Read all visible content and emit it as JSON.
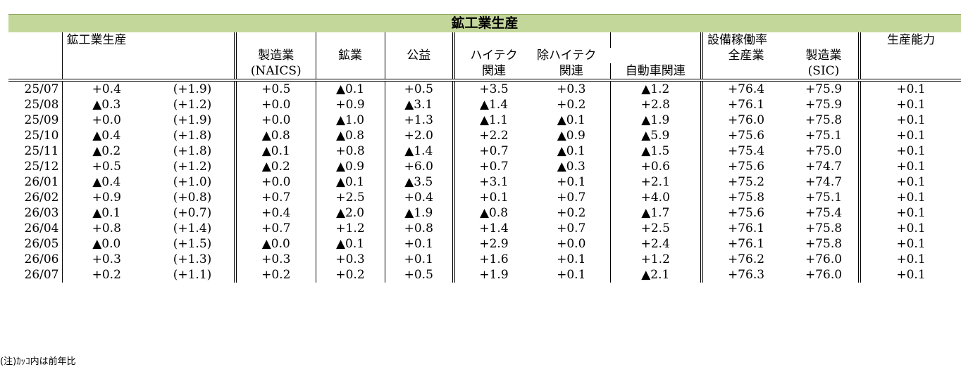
{
  "title": "鉱工業生産",
  "headers": {
    "group_production": "鉱工業生産",
    "group_utilization": "設備稼働率",
    "capacity": "生産能力",
    "manufacturing": "製造業",
    "naics": "(NAICS)",
    "mining": "鉱業",
    "utilities": "公益",
    "hitech": "ハイテク",
    "hitech_related": "関連",
    "ex_hitech": "除ハイテク",
    "ex_hitech_related": "関連",
    "auto": "自動車関連",
    "all_industry": "全産業",
    "util_manufacturing": "製造業",
    "sic": "(SIC)"
  },
  "rows": [
    {
      "period": "25/07",
      "total": "+0.4",
      "yoy": "(+1.9)",
      "mfg": "+0.5",
      "mining": "▲0.1",
      "utilities": "+0.5",
      "hitech": "+3.5",
      "ex_hitech": "+0.3",
      "auto": "▲1.2",
      "util_all": "+76.4",
      "util_mfg": "+75.9",
      "capacity": "+0.1"
    },
    {
      "period": "25/08",
      "total": "▲0.3",
      "yoy": "(+1.2)",
      "mfg": "+0.0",
      "mining": "+0.9",
      "utilities": "▲3.1",
      "hitech": "▲1.4",
      "ex_hitech": "+0.2",
      "auto": "+2.8",
      "util_all": "+76.1",
      "util_mfg": "+75.9",
      "capacity": "+0.1"
    },
    {
      "period": "25/09",
      "total": "+0.0",
      "yoy": "(+1.9)",
      "mfg": "+0.0",
      "mining": "▲1.0",
      "utilities": "+1.3",
      "hitech": "▲1.1",
      "ex_hitech": "▲0.1",
      "auto": "▲1.9",
      "util_all": "+76.0",
      "util_mfg": "+75.8",
      "capacity": "+0.1"
    },
    {
      "period": "25/10",
      "total": "▲0.4",
      "yoy": "(+1.8)",
      "mfg": "▲0.8",
      "mining": "▲0.8",
      "utilities": "+2.0",
      "hitech": "+2.2",
      "ex_hitech": "▲0.9",
      "auto": "▲5.9",
      "util_all": "+75.6",
      "util_mfg": "+75.1",
      "capacity": "+0.1"
    },
    {
      "period": "25/11",
      "total": "▲0.2",
      "yoy": "(+1.8)",
      "mfg": "▲0.1",
      "mining": "+0.8",
      "utilities": "▲1.4",
      "hitech": "+0.7",
      "ex_hitech": "▲0.1",
      "auto": "▲1.5",
      "util_all": "+75.4",
      "util_mfg": "+75.0",
      "capacity": "+0.1"
    },
    {
      "period": "25/12",
      "total": "+0.5",
      "yoy": "(+1.2)",
      "mfg": "▲0.2",
      "mining": "▲0.9",
      "utilities": "+6.0",
      "hitech": "+0.7",
      "ex_hitech": "▲0.3",
      "auto": "+0.6",
      "util_all": "+75.6",
      "util_mfg": "+74.7",
      "capacity": "+0.1"
    },
    {
      "period": "26/01",
      "total": "▲0.4",
      "yoy": "(+1.0)",
      "mfg": "+0.0",
      "mining": "▲0.1",
      "utilities": "▲3.5",
      "hitech": "+3.1",
      "ex_hitech": "+0.1",
      "auto": "+2.1",
      "util_all": "+75.2",
      "util_mfg": "+74.7",
      "capacity": "+0.1"
    },
    {
      "period": "26/02",
      "total": "+0.9",
      "yoy": "(+0.8)",
      "mfg": "+0.7",
      "mining": "+2.5",
      "utilities": "+0.4",
      "hitech": "+0.1",
      "ex_hitech": "+0.7",
      "auto": "+4.0",
      "util_all": "+75.8",
      "util_mfg": "+75.1",
      "capacity": "+0.1"
    },
    {
      "period": "26/03",
      "total": "▲0.1",
      "yoy": "(+0.7)",
      "mfg": "+0.4",
      "mining": "▲2.0",
      "utilities": "▲1.9",
      "hitech": "▲0.8",
      "ex_hitech": "+0.2",
      "auto": "▲1.7",
      "util_all": "+75.6",
      "util_mfg": "+75.4",
      "capacity": "+0.1"
    },
    {
      "period": "26/04",
      "total": "+0.8",
      "yoy": "(+1.4)",
      "mfg": "+0.7",
      "mining": "+1.2",
      "utilities": "+0.8",
      "hitech": "+1.4",
      "ex_hitech": "+0.7",
      "auto": "+2.5",
      "util_all": "+76.1",
      "util_mfg": "+75.8",
      "capacity": "+0.1"
    },
    {
      "period": "26/05",
      "total": "▲0.0",
      "yoy": "(+1.5)",
      "mfg": "▲0.0",
      "mining": "▲0.1",
      "utilities": "+0.1",
      "hitech": "+2.9",
      "ex_hitech": "+0.0",
      "auto": "+2.4",
      "util_all": "+76.1",
      "util_mfg": "+75.8",
      "capacity": "+0.1"
    },
    {
      "period": "26/06",
      "total": "+0.3",
      "yoy": "(+1.3)",
      "mfg": "+0.3",
      "mining": "+0.3",
      "utilities": "+0.1",
      "hitech": "+1.6",
      "ex_hitech": "+0.1",
      "auto": "+1.2",
      "util_all": "+76.2",
      "util_mfg": "+76.0",
      "capacity": "+0.1"
    },
    {
      "period": "26/07",
      "total": "+0.2",
      "yoy": "(+1.1)",
      "mfg": "+0.2",
      "mining": "+0.2",
      "utilities": "+0.5",
      "hitech": "+1.9",
      "ex_hitech": "+0.1",
      "auto": "▲2.1",
      "util_all": "+76.3",
      "util_mfg": "+76.0",
      "capacity": "+0.1"
    }
  ],
  "note": "(注)ｶｯｺ内は前年比"
}
